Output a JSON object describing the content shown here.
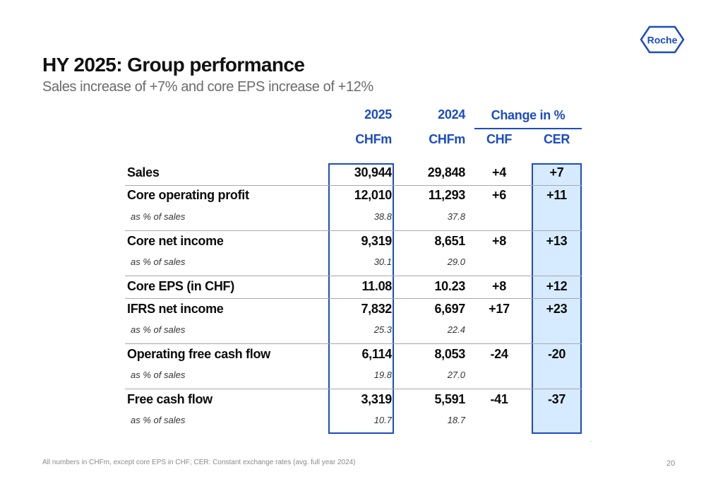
{
  "brand": {
    "logo_text": "Roche",
    "color": "#1a4cc4"
  },
  "title": "HY 2025: Group performance",
  "subtitle": "Sales increase of +7% and core EPS increase of +12%",
  "columns": {
    "y2025": "2025",
    "y2024": "2024",
    "change": "Change in %",
    "unit2025": "CHFm",
    "unit2024": "CHFm",
    "chf": "CHF",
    "cer": "CER"
  },
  "rows": [
    {
      "label": "Sales",
      "v2025": "30,944",
      "v2024": "29,848",
      "chf": "+4",
      "cer": "+7"
    },
    {
      "label": "Core operating profit",
      "v2025": "12,010",
      "v2024": "11,293",
      "chf": "+6",
      "cer": "+11",
      "sub_label": "as % of sales",
      "sub2025": "38.8",
      "sub2024": "37.8"
    },
    {
      "label": "Core net income",
      "v2025": "9,319",
      "v2024": "8,651",
      "chf": "+8",
      "cer": "+13",
      "sub_label": "as % of sales",
      "sub2025": "30.1",
      "sub2024": "29.0"
    },
    {
      "label": "Core EPS (in CHF)",
      "v2025": "11.08",
      "v2024": "10.23",
      "chf": "+8",
      "cer": "+12"
    },
    {
      "label": "IFRS net income",
      "v2025": "7,832",
      "v2024": "6,697",
      "chf": "+17",
      "cer": "+23",
      "sub_label": "as % of sales",
      "sub2025": "25.3",
      "sub2024": "22.4"
    },
    {
      "label": "Operating free cash flow",
      "v2025": "6,114",
      "v2024": "8,053",
      "chf": "-24",
      "cer": "-20",
      "sub_label": "as % of sales",
      "sub2025": "19.8",
      "sub2024": "27.0"
    },
    {
      "label": "Free cash flow",
      "v2025": "3,319",
      "v2024": "5,591",
      "chf": "-41",
      "cer": "-37",
      "sub_label": "as % of sales",
      "sub2025": "10.7",
      "sub2024": "18.7"
    }
  ],
  "footnote": "All numbers in CHFm, except core EPS in CHF; CER: Constant exchange rates (avg. full year 2024)",
  "page_number": "20"
}
